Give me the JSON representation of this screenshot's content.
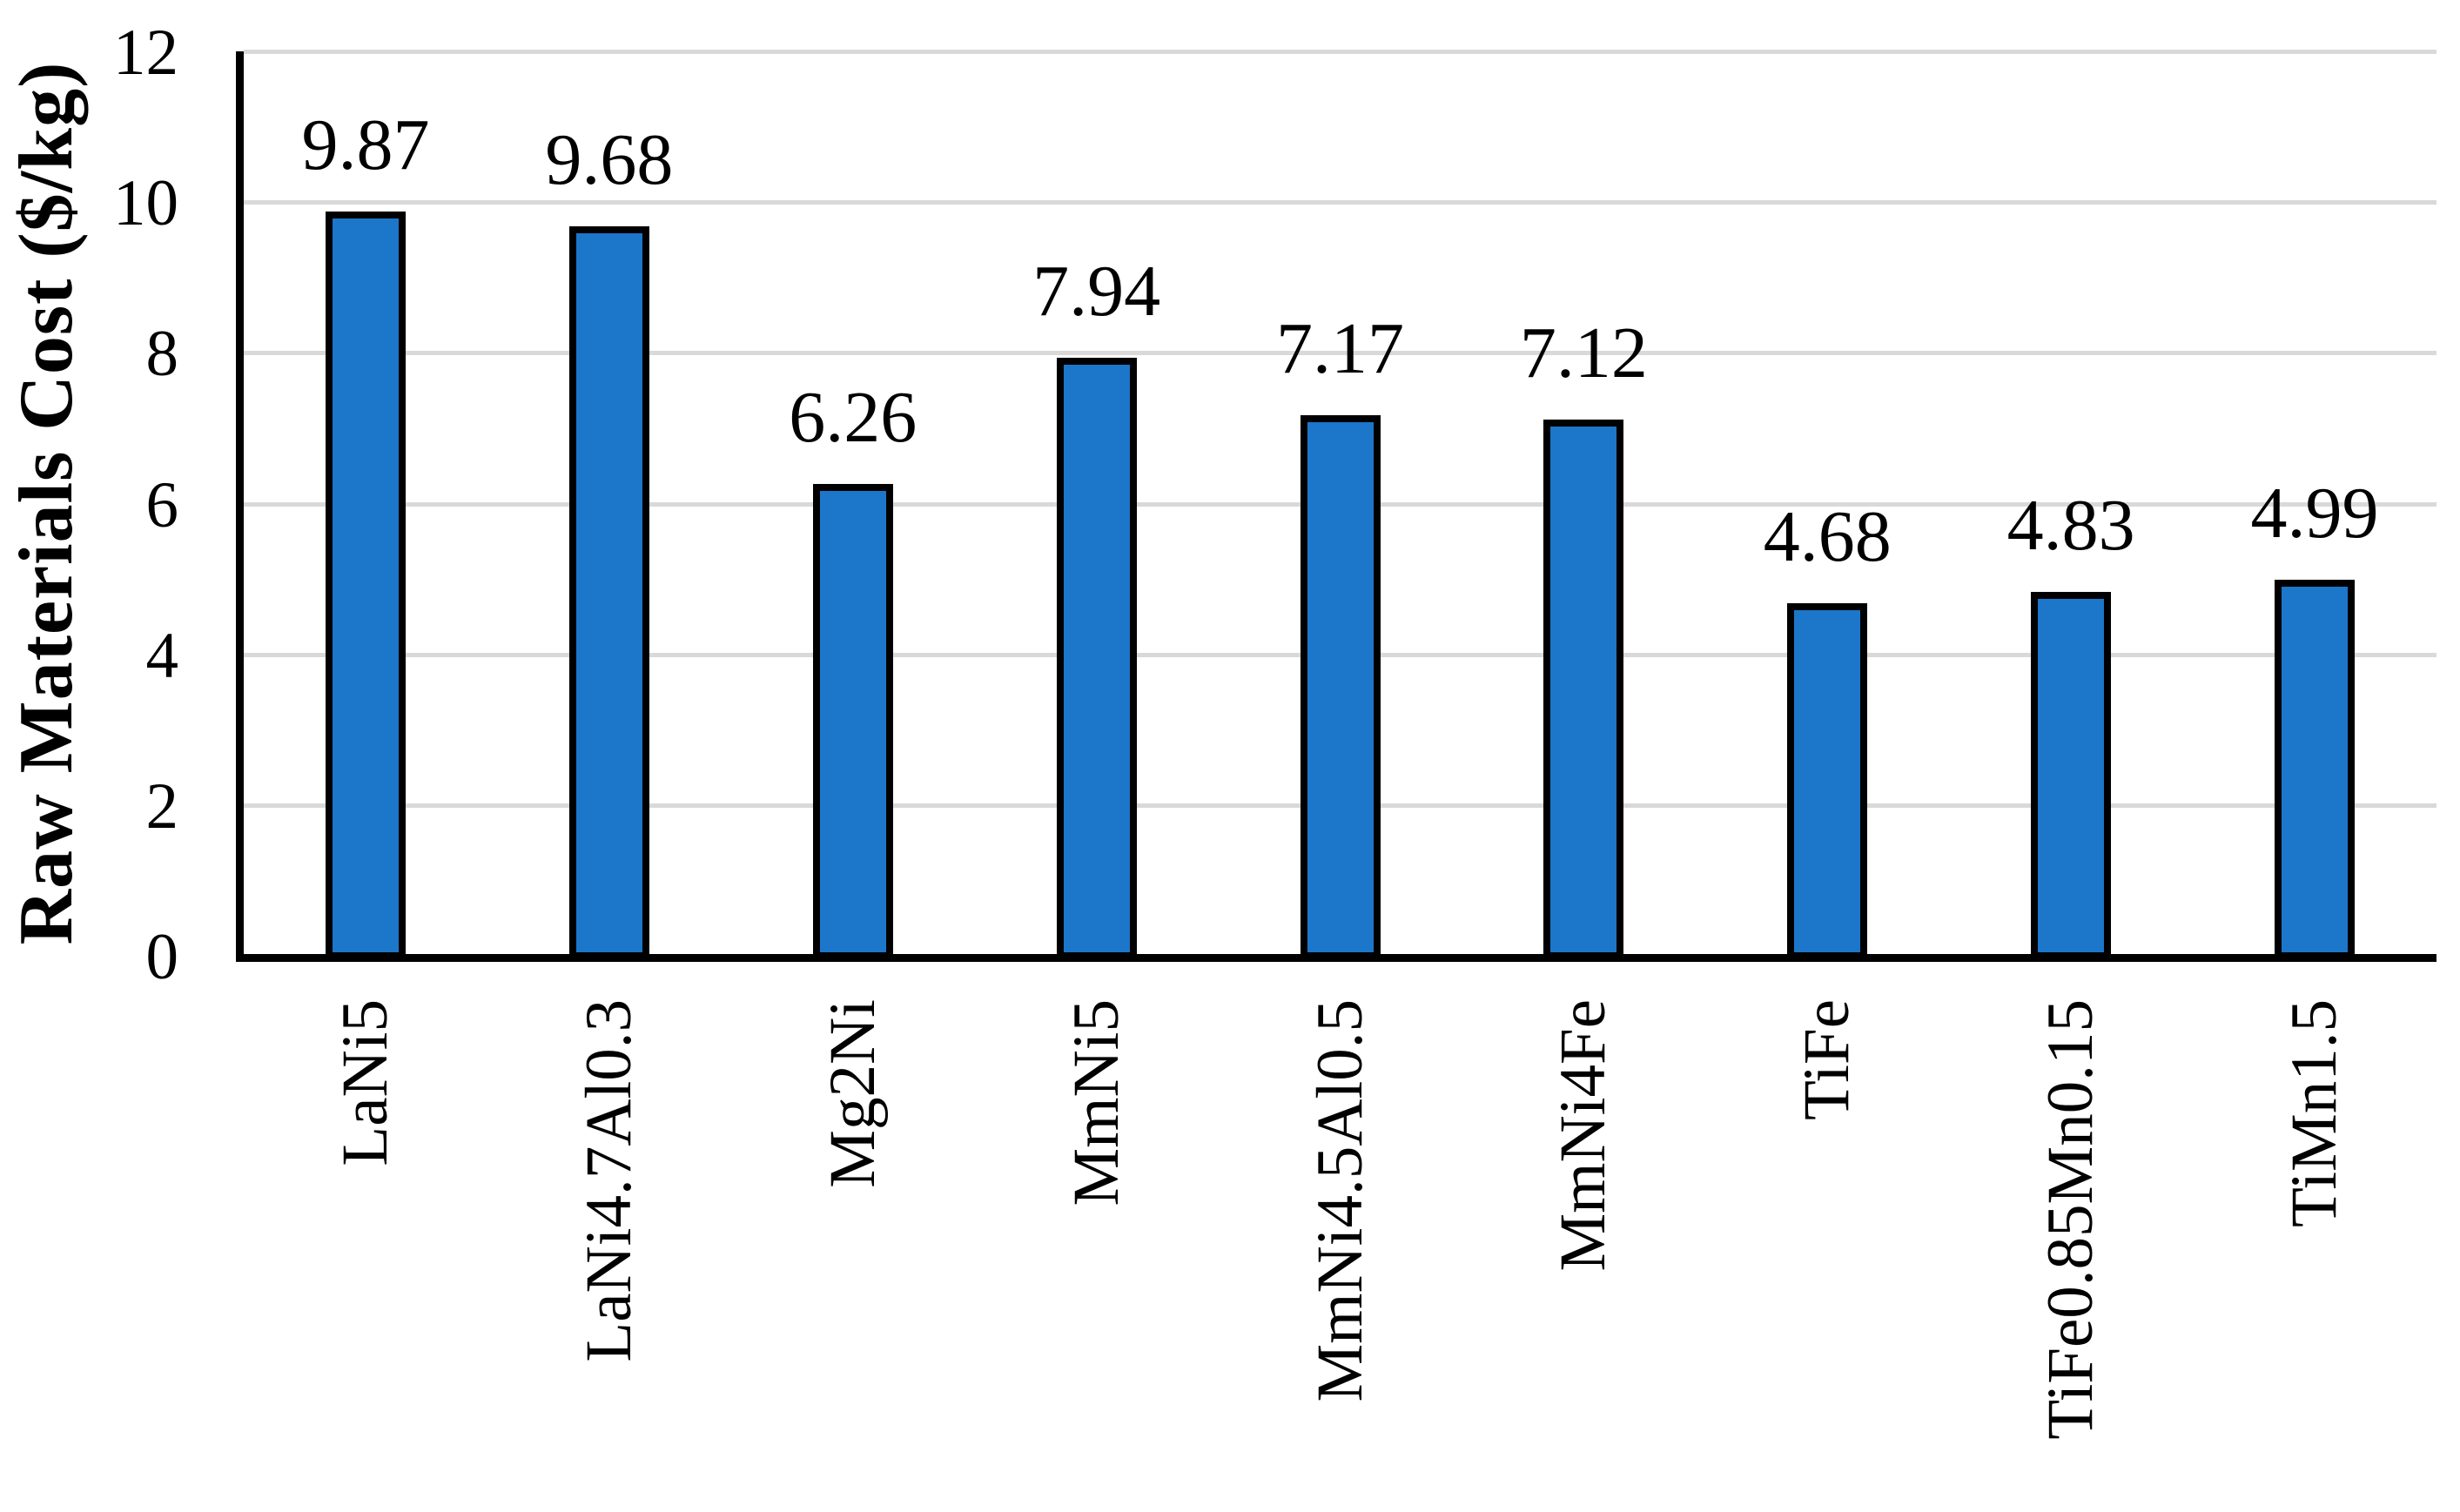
{
  "chart_data": {
    "type": "bar",
    "title": "",
    "xlabel": "",
    "ylabel": "Raw Materials Cost ($/kg)",
    "categories": [
      "LaNi5",
      "LaNi4.7Al0.3",
      "Mg2Ni",
      "MmNi5",
      "MmNi4.5Al0.5",
      "MmNi4Fe",
      "TiFe",
      "TiFe0.85Mn0.15",
      "TiMn1.5"
    ],
    "values": [
      9.87,
      9.68,
      6.26,
      7.94,
      7.17,
      7.12,
      4.68,
      4.83,
      4.99
    ],
    "value_labels": [
      "9.87",
      "9.68",
      "6.26",
      "7.94",
      "7.17",
      "7.12",
      "4.68",
      "4.83",
      "4.99"
    ],
    "ylim": [
      0,
      12
    ],
    "yticks": [
      0,
      2,
      4,
      6,
      8,
      10,
      12
    ],
    "grid": true,
    "legend": false,
    "category_label_rotation_deg": 90,
    "bar_color": "#1C76C9",
    "bar_border_color": "#000000",
    "gridline_color": "#D9D9D9",
    "axis_color": "#000000",
    "text_color": "#000000",
    "background_color": "#FFFFFF"
  }
}
